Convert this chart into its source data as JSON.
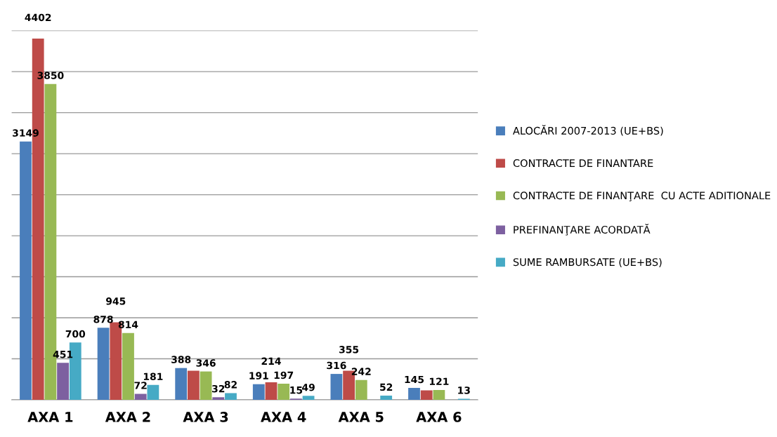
{
  "chart_data": {
    "type": "bar",
    "categories": [
      "AXA 1",
      "AXA 2",
      "AXA 3",
      "AXA 4",
      "AXA 5",
      "AXA 6"
    ],
    "series": [
      {
        "name": "ALOCĂRI 2007-2013 (UE+BS)",
        "color": "#4a7ebb",
        "values": [
          3149,
          878,
          388,
          191,
          316,
          145
        ],
        "value_labels": [
          "3149",
          "878",
          "388",
          "191",
          "316",
          "145"
        ]
      },
      {
        "name": "CONTRACTE DE FINANTARE",
        "color": "#be4b48",
        "values": [
          4402,
          945,
          355,
          214,
          355,
          115
        ],
        "value_labels": [
          "4402",
          "945",
          null,
          "214",
          "355",
          null
        ]
      },
      {
        "name": "CONTRACTE DE FINANŢARE  CU ACTE ADITIONALE",
        "color": "#98b954",
        "values": [
          3850,
          814,
          346,
          197,
          242,
          121
        ],
        "value_labels": [
          "3850",
          "814",
          "346",
          "197",
          "242",
          "121"
        ]
      },
      {
        "name": "PREFINANŢARE ACORDATĂ",
        "color": "#7d60a0",
        "values": [
          451,
          72,
          32,
          15,
          null,
          null
        ],
        "value_labels": [
          "451",
          "72",
          "32",
          "15",
          null,
          null
        ]
      },
      {
        "name": "SUME RAMBURSATE (UE+BS)",
        "color": "#46aac5",
        "values": [
          700,
          181,
          82,
          49,
          52,
          13
        ],
        "value_labels": [
          "700",
          "181",
          "82",
          "49",
          "52",
          "13"
        ]
      }
    ],
    "ylim": [
      0,
      4500
    ],
    "yticks": [
      {
        "value": 0,
        "label": null
      },
      {
        "value": 500,
        "label": null
      },
      {
        "value": 1000,
        "label": null
      },
      {
        "value": 1500,
        "label": null
      },
      {
        "value": 2000,
        "label": null
      },
      {
        "value": 2500,
        "label": null
      },
      {
        "value": 3000,
        "label": null
      },
      {
        "value": 3500,
        "label": null
      },
      {
        "value": 4000,
        "label": null
      },
      {
        "value": 4500,
        "label": null
      }
    ],
    "tick_labels": "x",
    "grid": "y",
    "legend": "right"
  }
}
